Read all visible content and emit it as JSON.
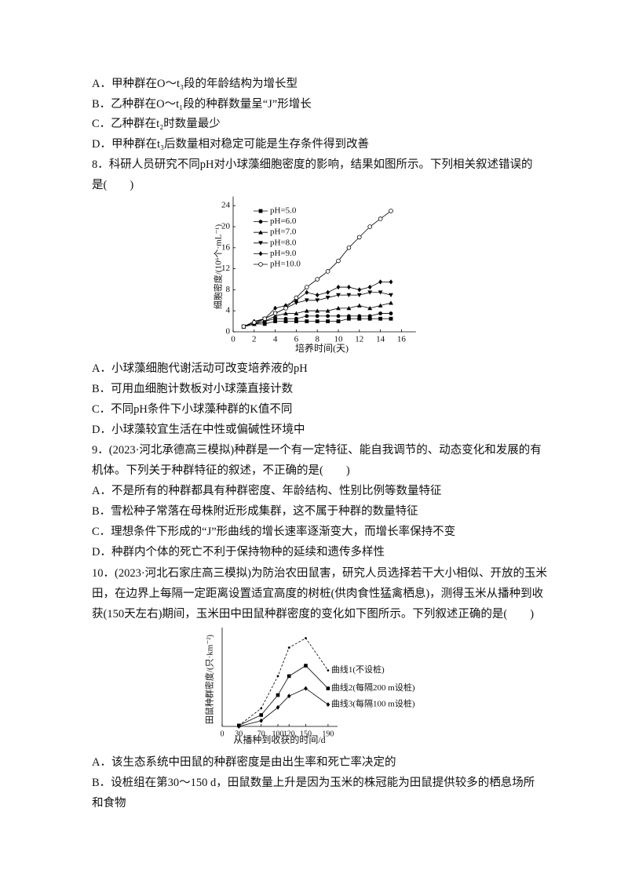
{
  "lines_before_fig1": [
    "A．甲种群在O～t₃段的年龄结构为增长型",
    "B．乙种群在O～t₁段的种群数量呈“J”形增长",
    "C．乙种群在t₂时数量最少",
    "D．甲种群在t₃后数量相对稳定可能是生存条件得到改善",
    "8．科研人员研究不同pH对小球藻细胞密度的影响，结果如图所示。下列相关叙述错误的",
    "是(　　)"
  ],
  "figure_1": {
    "type": "line",
    "x_label": "培养时间(天)",
    "y_label": "细胞密度/(10⁶个·mL⁻¹)",
    "x": [
      1,
      2,
      3,
      4,
      5,
      6,
      7,
      8,
      9,
      10,
      11,
      12,
      13,
      14,
      15
    ],
    "xlim": [
      0,
      17
    ],
    "ylim": [
      0,
      25
    ],
    "xticks": [
      0,
      2,
      4,
      6,
      8,
      10,
      12,
      14,
      16
    ],
    "yticks": [
      0,
      4,
      8,
      12,
      16,
      20,
      24
    ],
    "series": [
      {
        "name": "pH=5.0",
        "color": "#000",
        "marker": "square",
        "values": [
          1,
          1.5,
          1.5,
          2,
          2,
          2,
          2,
          2,
          2,
          2,
          2.5,
          2.5,
          2.5,
          2.5,
          2.5
        ]
      },
      {
        "name": "pH=6.0",
        "color": "#000",
        "marker": "circle",
        "values": [
          1,
          1.5,
          2,
          2.5,
          2.5,
          2.5,
          3,
          3,
          3,
          3,
          3,
          3,
          3,
          3.5,
          3.5
        ]
      },
      {
        "name": "pH=7.0",
        "color": "#000",
        "marker": "triangle",
        "values": [
          1,
          1.5,
          2,
          3,
          3.5,
          3.5,
          4,
          4,
          4,
          4.5,
          4.5,
          5,
          4.5,
          5,
          5.5
        ]
      },
      {
        "name": "pH=8.0",
        "color": "#000",
        "marker": "triangle-down",
        "values": [
          1,
          1.5,
          2.5,
          3.5,
          4.5,
          5.5,
          6,
          6,
          6.5,
          7,
          7,
          7,
          7.5,
          7.5,
          7
        ]
      },
      {
        "name": "pH=9.0",
        "color": "#000",
        "marker": "diamond",
        "values": [
          1,
          2,
          2.5,
          4.5,
          5,
          6,
          7.5,
          7,
          7.5,
          8.5,
          8.5,
          8,
          8.5,
          9.5,
          9.5
        ]
      },
      {
        "name": "pH=10.0",
        "color": "#000",
        "marker": "open-circle",
        "values": [
          1,
          1.8,
          2.5,
          3.5,
          4.5,
          6.5,
          8.5,
          10,
          11.5,
          13.5,
          16,
          18,
          20,
          21.5,
          23
        ]
      }
    ]
  },
  "lines_between": [
    "A．小球藻细胞代谢活动可改变培养液的pH",
    "B．可用血细胞计数板对小球藻直接计数",
    "C．不同pH条件下小球藻种群的K值不同",
    "D．小球藻较宜生活在中性或偏碱性环境中",
    "9．(2023·河北承德高三模拟)种群是一个有一定特征、能自我调节的、动态变化和发展的有",
    "机体。下列关于种群特征的叙述，不正确的是(　　)",
    "A．不是所有的种群都具有种群密度、年龄结构、性别比例等数量特征",
    "B．雪松种子常落在母株附近形成集群，这不属于种群的数量特征",
    "C．理想条件下形成的“J”形曲线的增长速率逐渐变大，而增长率保持不变",
    "D．种群内个体的死亡不利于保持物种的延续和遗传多样性",
    "10．(2023·河北石家庄高三模拟)为防治农田鼠害，研究人员选择若干大小相似、开放的玉米",
    "田，在边界上每隔一定距离设置适宜高度的树桩(供肉食性猛禽栖息)，测得玉米从播种到收",
    "获(150天左右)期间，玉米田中田鼠种群密度的变化如下图所示。下列叙述正确的是(　　)"
  ],
  "figure_2": {
    "type": "line",
    "x_label": "从播种到收获的时间/d",
    "y_label": "田鼠种群密度/(只·km⁻²)",
    "x": [
      30,
      70,
      100,
      120,
      150,
      190
    ],
    "xlim": [
      0,
      200
    ],
    "ylim": [
      0,
      100
    ],
    "xticks": [
      0,
      30,
      70,
      100,
      120,
      150,
      190
    ],
    "yticks": [],
    "series": [
      {
        "name": "曲线1(不设桩)",
        "color": "#000",
        "marker": "dot",
        "dash": true,
        "values": [
          1,
          19,
          53,
          83,
          93,
          59
        ]
      },
      {
        "name": "曲线2(每隔200 m设桩)",
        "color": "#000",
        "marker": "square",
        "dash": false,
        "values": [
          1,
          12,
          33,
          53,
          64,
          40
        ]
      },
      {
        "name": "曲线3(每隔100 m设桩)",
        "color": "#000",
        "marker": "diamond",
        "dash": false,
        "values": [
          0,
          6,
          20,
          32,
          40,
          23
        ]
      }
    ]
  },
  "lines_after": [
    "A．该生态系统中田鼠的种群密度是由出生率和死亡率决定的",
    "B．设桩组在第30～150 d，田鼠数量上升是因为玉米的株冠能为田鼠提供较多的栖息场所",
    "和食物"
  ]
}
